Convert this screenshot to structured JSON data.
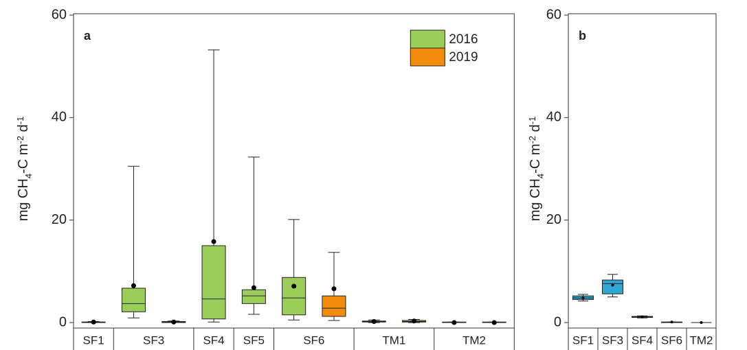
{
  "chart_data": [
    {
      "type": "box",
      "label": "a",
      "ylabel": [
        {
          "text": "mg CH",
          "shift": 0
        },
        {
          "text": "4",
          "shift": 1
        },
        {
          "text": "-C m",
          "shift": 0
        },
        {
          "text": "-2",
          "shift": -1
        },
        {
          "text": " d",
          "shift": 0
        },
        {
          "text": "-1",
          "shift": -1
        }
      ],
      "categories": [
        "SF1",
        "SF3",
        "SF4",
        "SF5",
        "SF6",
        "TM1",
        "TM2"
      ],
      "ylim": [
        0,
        60
      ],
      "yticks": [
        0,
        20,
        40,
        60
      ],
      "legend": "top right",
      "series": [
        {
          "name": "2016",
          "color": "#9bcd5b",
          "values": [
            {
              "min": 0,
              "q1": 0,
              "median": 0.1,
              "q3": 0.1,
              "max": 0.2,
              "mean": 0.1
            },
            {
              "min": 0.9,
              "q1": 2.1,
              "median": 3.7,
              "q3": 6.7,
              "max": 30.5,
              "mean": 7.2
            },
            {
              "min": 0.1,
              "q1": 0.7,
              "median": 4.6,
              "q3": 15.0,
              "max": 53.2,
              "mean": 15.8
            },
            {
              "min": 1.6,
              "q1": 3.7,
              "median": 5.2,
              "q3": 6.4,
              "max": 32.3,
              "mean": 6.8
            },
            {
              "min": 0.5,
              "q1": 1.5,
              "median": 4.8,
              "q3": 8.8,
              "max": 20.1,
              "mean": 7.1
            },
            {
              "min": 0,
              "q1": 0.1,
              "median": 0.2,
              "q3": 0.3,
              "max": 0.5,
              "mean": 0.2
            },
            {
              "min": 0,
              "q1": 0,
              "median": 0,
              "q3": 0.1,
              "max": 0.1,
              "mean": 0
            }
          ]
        },
        {
          "name": "2019",
          "color": "#f28c0f",
          "values": [
            null,
            {
              "min": 0,
              "q1": 0,
              "median": 0.1,
              "q3": 0.2,
              "max": 0.3,
              "mean": 0.1
            },
            null,
            null,
            {
              "min": 0.4,
              "q1": 1.2,
              "median": 2.8,
              "q3": 5.2,
              "max": 13.7,
              "mean": 6.6
            },
            {
              "min": 0,
              "q1": 0.1,
              "median": 0.2,
              "q3": 0.4,
              "max": 0.6,
              "mean": 0.3
            },
            {
              "min": 0,
              "q1": 0,
              "median": 0,
              "q3": 0.1,
              "max": 0.1,
              "mean": 0
            }
          ]
        }
      ]
    },
    {
      "type": "box",
      "label": "b",
      "ylabel": [
        {
          "text": "mg CH",
          "shift": 0
        },
        {
          "text": "4",
          "shift": 1
        },
        {
          "text": "-C m",
          "shift": 0
        },
        {
          "text": "-2",
          "shift": -1
        },
        {
          "text": " d",
          "shift": 0
        },
        {
          "text": "-1",
          "shift": -1
        }
      ],
      "categories": [
        "SF1",
        "SF3",
        "SF4",
        "SF6",
        "TM2"
      ],
      "ylim": [
        0,
        60
      ],
      "yticks": [
        0,
        20,
        40,
        60
      ],
      "series": [
        {
          "color": "#2fa8d5",
          "values": [
            {
              "min": 4.2,
              "q1": 4.5,
              "median": 4.8,
              "q3": 5.2,
              "max": 5.5,
              "mean": 4.8
            },
            {
              "min": 5.0,
              "q1": 5.6,
              "median": 7.6,
              "q3": 8.3,
              "max": 9.4,
              "mean": 7.3
            },
            {
              "min": 0.9,
              "q1": 1.0,
              "median": 1.1,
              "q3": 1.2,
              "max": 1.3,
              "mean": 1.1
            },
            {
              "min": 0,
              "q1": 0,
              "median": 0.1,
              "q3": 0.1,
              "max": 0.1,
              "mean": 0.1
            },
            {
              "min": 0,
              "q1": 0,
              "median": 0,
              "q3": 0,
              "max": 0,
              "mean": 0
            }
          ]
        }
      ]
    }
  ]
}
